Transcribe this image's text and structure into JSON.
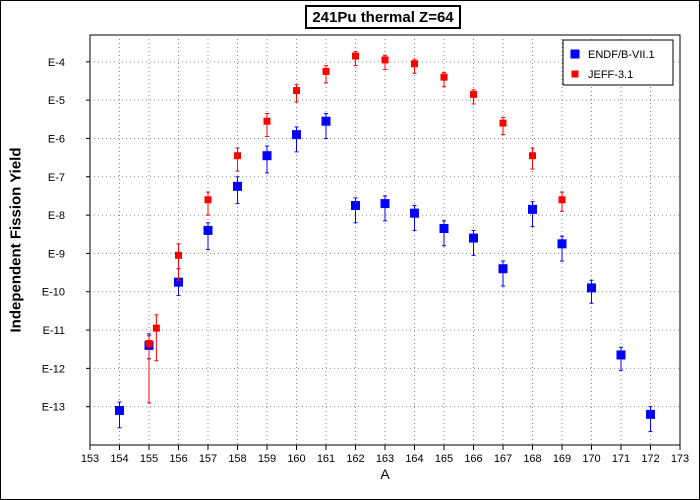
{
  "chart_data": {
    "type": "scatter",
    "title": "241Pu thermal Z=64",
    "xlabel": "A",
    "ylabel": "Independent Fission Yield",
    "xlim": [
      153,
      173
    ],
    "ylim_exp": [
      -14,
      -3.3
    ],
    "y_scale": "log",
    "x_ticks": [
      "153",
      "154",
      "155",
      "156",
      "157",
      "158",
      "159",
      "160",
      "161",
      "162",
      "163",
      "164",
      "165",
      "166",
      "167",
      "168",
      "169",
      "170",
      "171",
      "172",
      "173"
    ],
    "y_ticks": [
      {
        "label": "E-4",
        "exp": -4
      },
      {
        "label": "E-5",
        "exp": -5
      },
      {
        "label": "E-6",
        "exp": -6
      },
      {
        "label": "E-7",
        "exp": -7
      },
      {
        "label": "E-8",
        "exp": -8
      },
      {
        "label": "E-9",
        "exp": -9
      },
      {
        "label": "E-10",
        "exp": -10
      },
      {
        "label": "E-11",
        "exp": -11
      },
      {
        "label": "E-12",
        "exp": -12
      },
      {
        "label": "E-13",
        "exp": -13
      }
    ],
    "grid": true,
    "legend_position": "top-right",
    "series": [
      {
        "name": "ENDF/B-VII.1",
        "color": "#0000ff",
        "marker_size": "large",
        "points": [
          {
            "x": 154,
            "exp": -13.1,
            "err_up": 0.22,
            "err_dn": 0.45
          },
          {
            "x": 155,
            "exp": -11.4,
            "err_up": 0.3,
            "err_dn": 0.35
          },
          {
            "x": 156,
            "exp": -9.75,
            "err_up": 0.35,
            "err_dn": 0.35
          },
          {
            "x": 157,
            "exp": -8.4,
            "err_up": 0.2,
            "err_dn": 0.5
          },
          {
            "x": 158,
            "exp": -7.25,
            "err_up": 0.25,
            "err_dn": 0.45
          },
          {
            "x": 159,
            "exp": -6.45,
            "err_up": 0.25,
            "err_dn": 0.45
          },
          {
            "x": 160,
            "exp": -5.9,
            "err_up": 0.2,
            "err_dn": 0.45
          },
          {
            "x": 161,
            "exp": -5.55,
            "err_up": 0.2,
            "err_dn": 0.45
          },
          {
            "x": 162,
            "exp": -7.75,
            "err_up": 0.2,
            "err_dn": 0.45
          },
          {
            "x": 163,
            "exp": -7.7,
            "err_up": 0.2,
            "err_dn": 0.45
          },
          {
            "x": 164,
            "exp": -7.95,
            "err_up": 0.2,
            "err_dn": 0.45
          },
          {
            "x": 165,
            "exp": -8.35,
            "err_up": 0.2,
            "err_dn": 0.45
          },
          {
            "x": 166,
            "exp": -8.6,
            "err_up": 0.2,
            "err_dn": 0.45
          },
          {
            "x": 167,
            "exp": -9.4,
            "err_up": 0.2,
            "err_dn": 0.45
          },
          {
            "x": 168,
            "exp": -7.85,
            "err_up": 0.2,
            "err_dn": 0.45
          },
          {
            "x": 169,
            "exp": -8.75,
            "err_up": 0.2,
            "err_dn": 0.45
          },
          {
            "x": 170,
            "exp": -9.9,
            "err_up": 0.2,
            "err_dn": 0.4
          },
          {
            "x": 171,
            "exp": -11.65,
            "err_up": 0.2,
            "err_dn": 0.4
          },
          {
            "x": 172,
            "exp": -13.2,
            "err_up": 0.2,
            "err_dn": 0.45
          }
        ]
      },
      {
        "name": "JEFF-3.1",
        "color": "#ff0000",
        "marker_size": "small",
        "points": [
          {
            "x": 155,
            "exp": -11.35,
            "err_up": 0.2,
            "err_dn": 1.55
          },
          {
            "x": 155.25,
            "exp": -10.95,
            "err_up": 0.35,
            "err_dn": 0.85
          },
          {
            "x": 156,
            "exp": -9.05,
            "err_up": 0.3,
            "err_dn": 0.65
          },
          {
            "x": 157,
            "exp": -7.6,
            "err_up": 0.2,
            "err_dn": 0.4
          },
          {
            "x": 158,
            "exp": -6.45,
            "err_up": 0.2,
            "err_dn": 0.4
          },
          {
            "x": 159,
            "exp": -5.55,
            "err_up": 0.2,
            "err_dn": 0.4
          },
          {
            "x": 160,
            "exp": -4.75,
            "err_up": 0.15,
            "err_dn": 0.3
          },
          {
            "x": 161,
            "exp": -4.25,
            "err_up": 0.15,
            "err_dn": 0.3
          },
          {
            "x": 162,
            "exp": -3.85,
            "err_up": 0.12,
            "err_dn": 0.25
          },
          {
            "x": 163,
            "exp": -3.95,
            "err_up": 0.12,
            "err_dn": 0.25
          },
          {
            "x": 164,
            "exp": -4.05,
            "err_up": 0.12,
            "err_dn": 0.25
          },
          {
            "x": 165,
            "exp": -4.4,
            "err_up": 0.12,
            "err_dn": 0.25
          },
          {
            "x": 166,
            "exp": -4.85,
            "err_up": 0.12,
            "err_dn": 0.25
          },
          {
            "x": 167,
            "exp": -5.6,
            "err_up": 0.15,
            "err_dn": 0.3
          },
          {
            "x": 168,
            "exp": -6.45,
            "err_up": 0.2,
            "err_dn": 0.35
          },
          {
            "x": 169,
            "exp": -7.6,
            "err_up": 0.2,
            "err_dn": 0.3
          }
        ]
      }
    ]
  }
}
